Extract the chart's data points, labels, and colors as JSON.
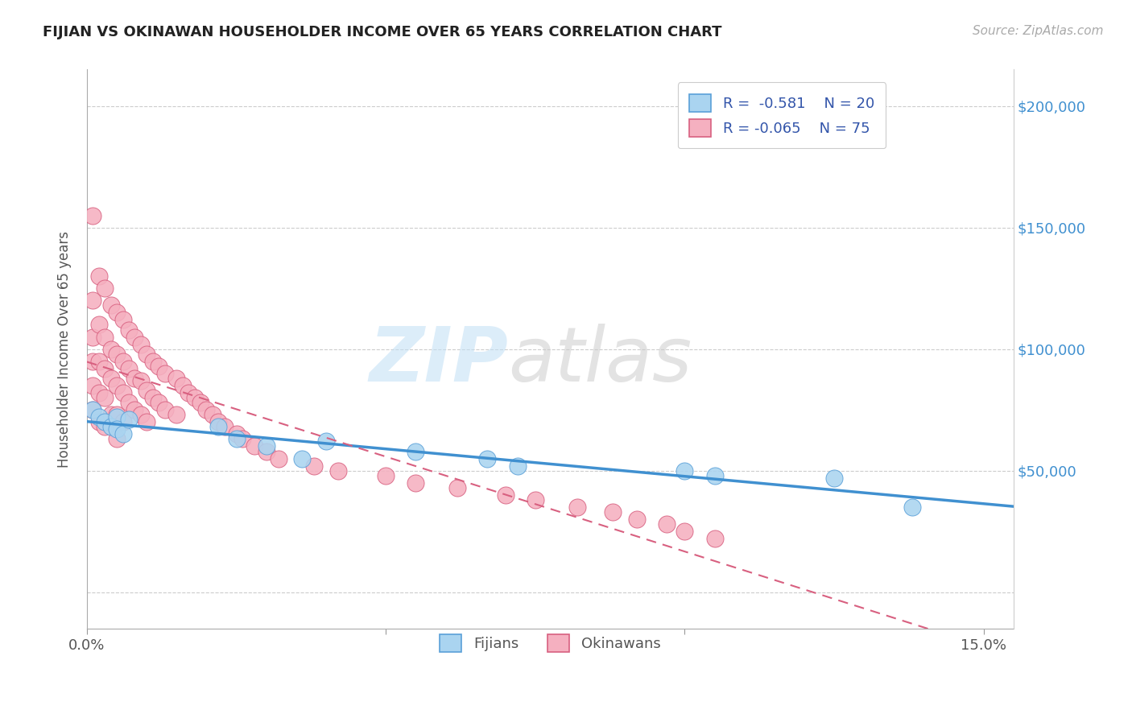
{
  "title": "FIJIAN VS OKINAWAN HOUSEHOLDER INCOME OVER 65 YEARS CORRELATION CHART",
  "source": "Source: ZipAtlas.com",
  "ylabel": "Householder Income Over 65 years",
  "legend_fijian_r": "R =  -0.581",
  "legend_fijian_n": "N = 20",
  "legend_okinawan_r": "R = -0.065",
  "legend_okinawan_n": "N = 75",
  "xlim": [
    0.0,
    0.155
  ],
  "ylim": [
    -15000,
    215000
  ],
  "fijian_color": "#aad4f0",
  "fijian_edge_color": "#5aA0d8",
  "fijian_line_color": "#4090d0",
  "okinawan_color": "#f5b0c0",
  "okinawan_edge_color": "#d86080",
  "okinawan_line_color": "#d86080",
  "yticks": [
    0,
    50000,
    100000,
    150000,
    200000
  ],
  "ytick_labels": [
    "",
    "$50,000",
    "$100,000",
    "$150,000",
    "$200,000"
  ],
  "fijians_x": [
    0.001,
    0.002,
    0.003,
    0.004,
    0.005,
    0.005,
    0.006,
    0.007,
    0.022,
    0.025,
    0.03,
    0.036,
    0.04,
    0.055,
    0.067,
    0.072,
    0.1,
    0.105,
    0.125,
    0.138
  ],
  "fijians_y": [
    75000,
    72000,
    70000,
    68000,
    72000,
    67000,
    65000,
    71000,
    68000,
    63000,
    60000,
    55000,
    62000,
    58000,
    55000,
    52000,
    50000,
    48000,
    47000,
    35000
  ],
  "okinawans_x": [
    0.001,
    0.001,
    0.001,
    0.001,
    0.001,
    0.001,
    0.002,
    0.002,
    0.002,
    0.002,
    0.002,
    0.003,
    0.003,
    0.003,
    0.003,
    0.003,
    0.004,
    0.004,
    0.004,
    0.004,
    0.005,
    0.005,
    0.005,
    0.005,
    0.005,
    0.006,
    0.006,
    0.006,
    0.006,
    0.007,
    0.007,
    0.007,
    0.008,
    0.008,
    0.008,
    0.009,
    0.009,
    0.009,
    0.01,
    0.01,
    0.01,
    0.011,
    0.011,
    0.012,
    0.012,
    0.013,
    0.013,
    0.015,
    0.015,
    0.016,
    0.017,
    0.018,
    0.019,
    0.02,
    0.021,
    0.022,
    0.023,
    0.025,
    0.026,
    0.028,
    0.03,
    0.032,
    0.038,
    0.042,
    0.05,
    0.055,
    0.062,
    0.07,
    0.075,
    0.082,
    0.088,
    0.092,
    0.097,
    0.1,
    0.105
  ],
  "okinawans_y": [
    155000,
    120000,
    105000,
    95000,
    85000,
    75000,
    130000,
    110000,
    95000,
    82000,
    70000,
    125000,
    105000,
    92000,
    80000,
    68000,
    118000,
    100000,
    88000,
    73000,
    115000,
    98000,
    85000,
    73000,
    63000,
    112000,
    95000,
    82000,
    70000,
    108000,
    92000,
    78000,
    105000,
    88000,
    75000,
    102000,
    87000,
    73000,
    98000,
    83000,
    70000,
    95000,
    80000,
    93000,
    78000,
    90000,
    75000,
    88000,
    73000,
    85000,
    82000,
    80000,
    78000,
    75000,
    73000,
    70000,
    68000,
    65000,
    63000,
    60000,
    58000,
    55000,
    52000,
    50000,
    48000,
    45000,
    43000,
    40000,
    38000,
    35000,
    33000,
    30000,
    28000,
    25000,
    22000
  ]
}
